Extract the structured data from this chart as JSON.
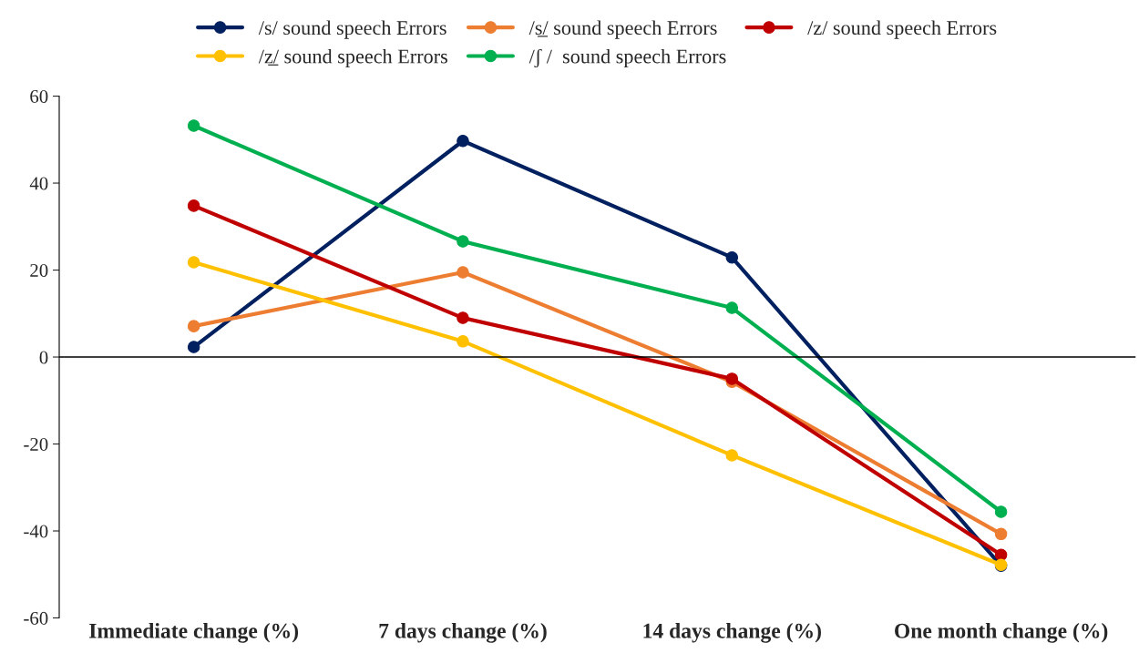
{
  "chart_data": {
    "type": "line",
    "categories": [
      "Immediate change (%)",
      "7 days change (%)",
      "14 days change (%)",
      "One month change (%)"
    ],
    "series": [
      {
        "name": "/s/ sound speech Errors",
        "color": "#002060",
        "values": [
          2.3,
          49.7,
          22.9,
          -48
        ]
      },
      {
        "name": "/s̲/ sound speech Errors",
        "color": "#ed7d31",
        "values": [
          7.1,
          19.5,
          -5.7,
          -40.7
        ]
      },
      {
        "name": "/z/ sound speech Errors",
        "color": "#c00000",
        "values": [
          34.8,
          9.0,
          -5.0,
          -45.5
        ]
      },
      {
        "name": "/z̲/ sound speech Errors",
        "color": "#ffc000",
        "values": [
          21.8,
          3.6,
          -22.6,
          -47.8
        ]
      },
      {
        "name": "/ʃ /  sound speech Errors",
        "color": "#00b050",
        "values": [
          53.2,
          26.6,
          11.3,
          -35.6
        ]
      }
    ],
    "ylim": [
      -60,
      60
    ],
    "yticks": [
      -60,
      -40,
      -20,
      0,
      20,
      40,
      60
    ],
    "ref_lines": [
      {
        "axis": "y",
        "value": 0,
        "color": "#000000"
      }
    ],
    "legend": "top",
    "marker": "circle",
    "line_style": "solid"
  }
}
